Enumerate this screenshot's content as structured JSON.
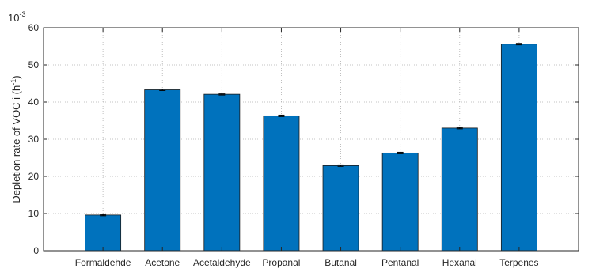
{
  "chart_data": {
    "type": "bar",
    "categories": [
      "Formaldehde",
      "Acetone",
      "Acetaldehyde",
      "Propanal",
      "Butanal",
      "Pentanal",
      "Hexanal",
      "Terpenes"
    ],
    "values": [
      9.6,
      43.3,
      42.1,
      36.3,
      22.9,
      26.3,
      33.0,
      55.6
    ],
    "errors": [
      0.2,
      0.2,
      0.2,
      0.2,
      0.2,
      0.2,
      0.2,
      0.2
    ],
    "ylabel": "Depletion rate of VOC i (h",
    "ylabel_sup": "-1",
    "ylabel_close": ")",
    "yscale_base": "10",
    "yscale_exp": "-3",
    "ylim": [
      0,
      60
    ],
    "yticks": [
      0,
      10,
      20,
      30,
      40,
      50,
      60
    ],
    "grid": true,
    "bar_color": "#0072BD"
  }
}
